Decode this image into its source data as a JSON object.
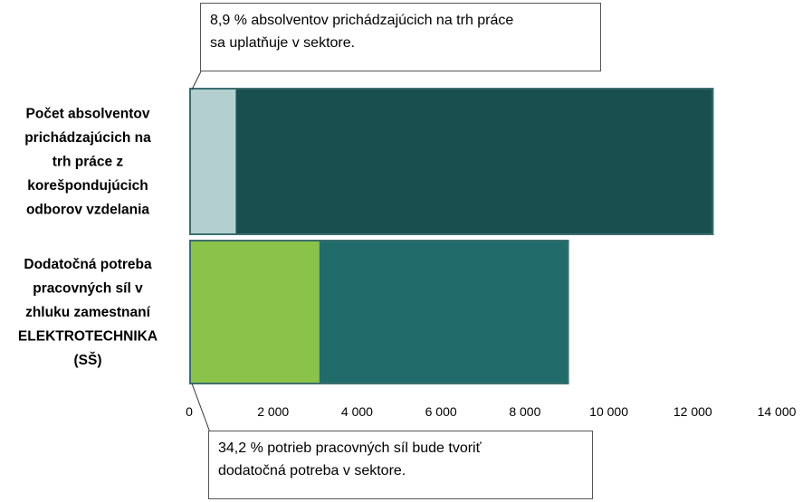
{
  "chart_data": {
    "type": "bar",
    "orientation": "horizontal",
    "stacked": true,
    "xlim": [
      0,
      14000
    ],
    "ticks": [
      "0",
      "2 000",
      "4 000",
      "6 000",
      "8 000",
      "10 000",
      "12 000",
      "14 000"
    ],
    "tick_values": [
      0,
      2000,
      4000,
      6000,
      8000,
      10000,
      12000,
      14000
    ],
    "grid": false,
    "categories": [
      {
        "label_lines": [
          "Počet absolventov",
          "prichádzajúcich na",
          "trh práce z",
          "korešpondujúcich",
          "odborov vzdelania"
        ],
        "segments": [
          {
            "value": 1110,
            "color": "#b3cfd0"
          },
          {
            "value": 11390,
            "color": "#1a4f50"
          }
        ]
      },
      {
        "label_lines": [
          "Dodatočná potreba",
          "pracovných síl v",
          "zhluku zamestnaní",
          "ELEKTROTECHNIKA",
          "(SŠ)"
        ],
        "segments": [
          {
            "value": 3100,
            "color": "#8bc34a"
          },
          {
            "value": 5950,
            "color": "#216b6b"
          }
        ]
      }
    ],
    "annotations": [
      {
        "lines": [
          "8,9 % absolventov prichádzajúcich na trh práce",
          "sa uplatňuje v sektore."
        ],
        "target": "first-segment"
      },
      {
        "lines": [
          "34,2 % potrieb pracovných síl bude tvoriť",
          "dodatočná potreba v sektore."
        ],
        "target": "first-segment"
      }
    ]
  }
}
